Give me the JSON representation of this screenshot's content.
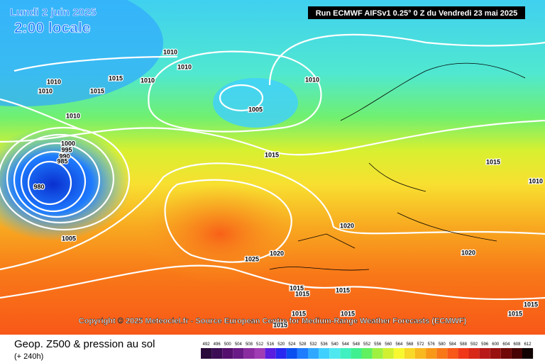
{
  "header": {
    "date": "Lundi 2 juin 2025",
    "time": "2:00 locale",
    "run": "Run ECMWF AIFSv1 0.25° 0 Z du Vendredi 23 mai 2025"
  },
  "copyright": "Copyright © 2025 Meteociel.fr - Source European Centre for Medium-Range Weather Forecasts (ECMWF)",
  "footer": {
    "title": "Geop. Z500 & pression au sol",
    "subtitle": "(+ 240h)"
  },
  "scale": {
    "labels": [
      492,
      496,
      500,
      504,
      508,
      512,
      516,
      520,
      524,
      528,
      532,
      536,
      540,
      544,
      548,
      552,
      556,
      560,
      564,
      568,
      572,
      576,
      580,
      584,
      588,
      592,
      596,
      600,
      604,
      608,
      612
    ],
    "colors": [
      "#2a0a3a",
      "#3c0d55",
      "#55106e",
      "#6a1a86",
      "#8a2ca0",
      "#a03cb4",
      "#5a1ee0",
      "#2828f0",
      "#0a50f0",
      "#1e7cff",
      "#30a8ff",
      "#40d0ff",
      "#50e8f0",
      "#40f0c0",
      "#40f090",
      "#60f060",
      "#a0f040",
      "#d0f030",
      "#f8f830",
      "#f8d828",
      "#f8b820",
      "#f89818",
      "#f87818",
      "#f85818",
      "#f03818",
      "#d82818",
      "#b81818",
      "#981010",
      "#700808",
      "#480404",
      "#100000"
    ]
  },
  "isobar_labels": [
    "1010",
    "1010",
    "1015",
    "1010",
    "1010",
    "1015",
    "1010",
    "1010",
    "1005",
    "1010",
    "1000",
    "995",
    "990",
    "985",
    "980",
    "1015",
    "1015",
    "1010",
    "1005",
    "1025",
    "1020",
    "1020",
    "1020",
    "1015",
    "1015",
    "1015",
    "1015",
    "1015",
    "1015",
    "1015",
    "1015"
  ]
}
